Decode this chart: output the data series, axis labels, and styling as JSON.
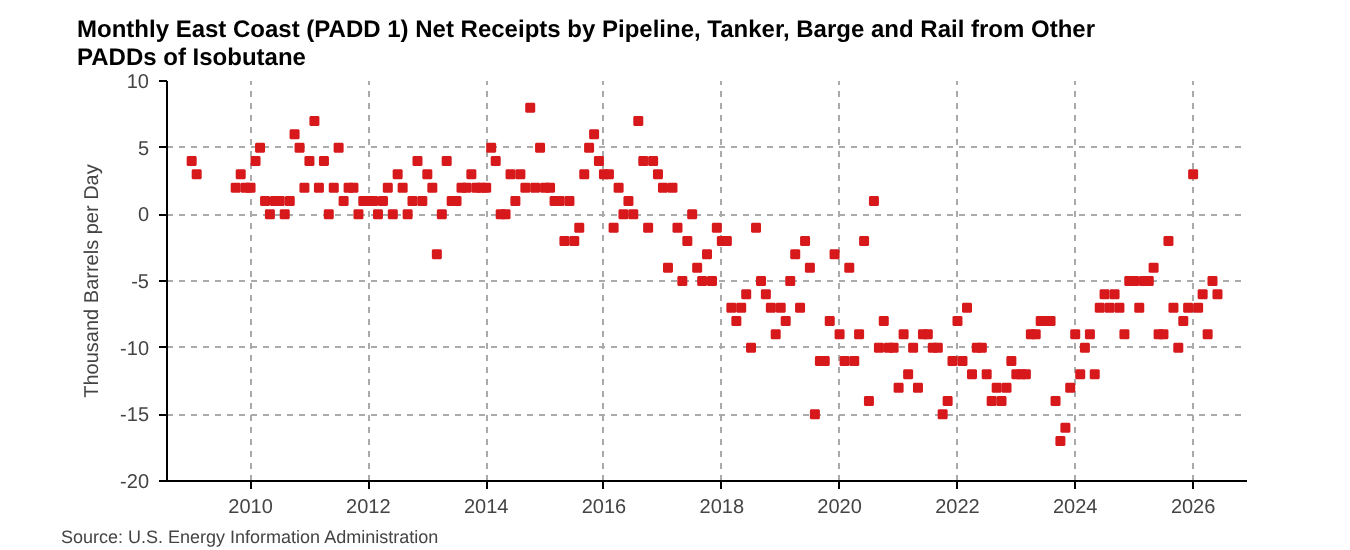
{
  "chart_data": {
    "type": "scatter",
    "title": "Monthly East Coast (PADD 1) Net Receipts by Pipeline, Tanker, Barge and Rail from Other PADDs of Isobutane",
    "ylabel": "Thousand Barrels per Day",
    "annotations": [
      "Source: U.S. Energy Information Administration"
    ],
    "x": [
      "2009-01",
      "2009-02",
      "2009-10",
      "2009-11",
      "2009-12",
      "2010-01",
      "2010-02",
      "2010-03",
      "2010-04",
      "2010-05",
      "2010-06",
      "2010-07",
      "2010-08",
      "2010-09",
      "2010-10",
      "2010-11",
      "2010-12",
      "2011-01",
      "2011-02",
      "2011-03",
      "2011-04",
      "2011-05",
      "2011-06",
      "2011-07",
      "2011-08",
      "2011-09",
      "2011-10",
      "2011-11",
      "2011-12",
      "2012-01",
      "2012-02",
      "2012-03",
      "2012-04",
      "2012-05",
      "2012-06",
      "2012-07",
      "2012-08",
      "2012-09",
      "2012-10",
      "2012-11",
      "2012-12",
      "2013-01",
      "2013-02",
      "2013-03",
      "2013-04",
      "2013-05",
      "2013-06",
      "2013-07",
      "2013-08",
      "2013-09",
      "2013-10",
      "2013-11",
      "2013-12",
      "2014-01",
      "2014-02",
      "2014-03",
      "2014-04",
      "2014-05",
      "2014-06",
      "2014-07",
      "2014-08",
      "2014-09",
      "2014-10",
      "2014-11",
      "2014-12",
      "2015-01",
      "2015-02",
      "2015-03",
      "2015-04",
      "2015-05",
      "2015-06",
      "2015-07",
      "2015-08",
      "2015-09",
      "2015-10",
      "2015-11",
      "2015-12",
      "2016-01",
      "2016-02",
      "2016-03",
      "2016-04",
      "2016-05",
      "2016-06",
      "2016-07",
      "2016-08",
      "2016-09",
      "2016-10",
      "2016-11",
      "2016-12",
      "2017-01",
      "2017-02",
      "2017-03",
      "2017-04",
      "2017-05",
      "2017-06",
      "2017-07",
      "2017-08",
      "2017-09",
      "2017-10",
      "2017-11",
      "2017-12",
      "2018-01",
      "2018-02",
      "2018-03",
      "2018-04",
      "2018-05",
      "2018-06",
      "2018-07",
      "2018-08",
      "2018-09",
      "2018-10",
      "2018-11",
      "2018-12",
      "2019-01",
      "2019-02",
      "2019-03",
      "2019-04",
      "2019-05",
      "2019-06",
      "2019-07",
      "2019-08",
      "2019-09",
      "2019-10",
      "2019-11",
      "2019-12",
      "2020-01",
      "2020-02",
      "2020-03",
      "2020-04",
      "2020-05",
      "2020-06",
      "2020-07",
      "2020-08",
      "2020-09",
      "2020-10",
      "2020-11",
      "2020-12",
      "2021-01",
      "2021-02",
      "2021-03",
      "2021-04",
      "2021-05",
      "2021-06",
      "2021-07",
      "2021-08",
      "2021-09",
      "2021-10",
      "2021-11",
      "2021-12",
      "2022-01",
      "2022-02",
      "2022-03",
      "2022-04",
      "2022-05",
      "2022-06",
      "2022-07",
      "2022-08",
      "2022-09",
      "2022-10",
      "2022-11",
      "2022-12",
      "2023-01",
      "2023-02",
      "2023-03",
      "2023-04",
      "2023-05",
      "2023-06",
      "2023-07",
      "2023-08",
      "2023-09",
      "2023-10",
      "2023-11",
      "2023-12",
      "2024-01",
      "2024-02",
      "2024-03",
      "2024-04",
      "2024-05",
      "2024-06",
      "2024-07",
      "2024-08",
      "2024-09",
      "2024-10",
      "2024-11",
      "2024-12",
      "2025-01",
      "2025-02",
      "2025-03",
      "2025-04",
      "2025-05",
      "2025-06",
      "2025-07",
      "2025-08",
      "2025-09",
      "2025-10",
      "2025-11",
      "2025-12",
      "2026-01",
      "2026-02",
      "2026-03",
      "2026-04",
      "2026-05",
      "2026-06"
    ],
    "series": [
      {
        "color": "#d7191c",
        "values": [
          4,
          3,
          2,
          3,
          2,
          2,
          4,
          5,
          1,
          0,
          1,
          1,
          0,
          1,
          6,
          5,
          2,
          4,
          7,
          2,
          4,
          0,
          2,
          5,
          1,
          2,
          2,
          0,
          1,
          1,
          1,
          0,
          1,
          2,
          0,
          3,
          2,
          0,
          1,
          4,
          1,
          3,
          2,
          -3,
          0,
          4,
          1,
          1,
          2,
          2,
          3,
          2,
          2,
          2,
          5,
          4,
          0,
          0,
          3,
          1,
          3,
          2,
          8,
          2,
          5,
          2,
          2,
          1,
          1,
          -2,
          1,
          -2,
          -1,
          3,
          5,
          6,
          4,
          3,
          3,
          -1,
          2,
          0,
          1,
          0,
          7,
          4,
          -1,
          4,
          3,
          2,
          -4,
          2,
          -1,
          -5,
          -2,
          0,
          -4,
          -5,
          -3,
          -5,
          -1,
          -2,
          -2,
          -7,
          -8,
          -7,
          -6,
          -10,
          -1,
          -5,
          -6,
          -7,
          -9,
          -7,
          -8,
          -5,
          -3,
          -7,
          -2,
          -4,
          -15,
          -11,
          -11,
          -8,
          -3,
          -9,
          -11,
          -4,
          -11,
          -9,
          -2,
          -14,
          1,
          -10,
          -8,
          -10,
          -10,
          -13,
          -9,
          -12,
          -10,
          -13,
          -9,
          -9,
          -10,
          -10,
          -15,
          -14,
          -11,
          -8,
          -11,
          -7,
          -12,
          -10,
          -10,
          -12,
          -14,
          -13,
          -14,
          -13,
          -11,
          -12,
          -12,
          -12,
          -9,
          -9,
          -8,
          -8,
          -8,
          -14,
          -17,
          -16,
          -13,
          -9,
          -12,
          -10,
          -9,
          -12,
          -7,
          -6,
          -7,
          -6,
          -7,
          -9,
          -5,
          -5,
          -7,
          -5,
          -5,
          -4,
          -9,
          -9,
          -2,
          -7,
          -10,
          -8,
          -7,
          3,
          -7,
          -6,
          -9,
          -5,
          -6
        ]
      }
    ],
    "marker": "square",
    "xlim": [
      "2008-08",
      "2026-12"
    ],
    "xticks": [
      {
        "value": "2010",
        "label": "2010"
      },
      {
        "value": "2012",
        "label": "2012"
      },
      {
        "value": "2014",
        "label": "2014"
      },
      {
        "value": "2016",
        "label": "2016"
      },
      {
        "value": "2018",
        "label": "2018"
      },
      {
        "value": "2020",
        "label": "2020"
      },
      {
        "value": "2022",
        "label": "2022"
      },
      {
        "value": "2024",
        "label": "2024"
      },
      {
        "value": "2026",
        "label": "2026"
      }
    ],
    "ylim": [
      -20,
      10
    ],
    "yticks": [
      -20,
      -15,
      -10,
      -5,
      0,
      5,
      10
    ],
    "grid": true
  }
}
